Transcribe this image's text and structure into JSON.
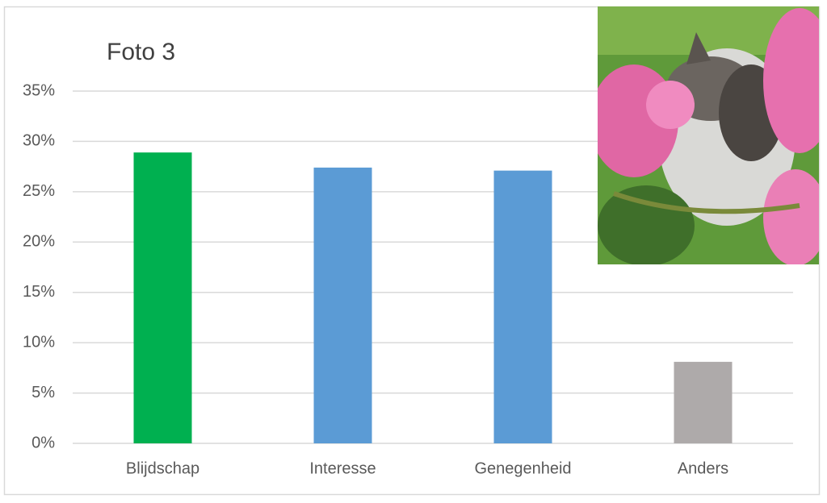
{
  "chart_data": {
    "type": "bar",
    "title": "Foto 3",
    "categories": [
      "Blijdschap",
      "Interesse",
      "Genegenheid",
      "Anders"
    ],
    "values": [
      28.9,
      27.4,
      27.1,
      8.1
    ],
    "colors": [
      "#00b050",
      "#5b9bd5",
      "#5b9bd5",
      "#aeaaaa"
    ],
    "ylim": [
      0,
      35
    ],
    "yticks": [
      {
        "value": 0,
        "label": "0%"
      },
      {
        "value": 5,
        "label": "5%"
      },
      {
        "value": 10,
        "label": "10%"
      },
      {
        "value": 15,
        "label": "15%"
      },
      {
        "value": 20,
        "label": "20%"
      },
      {
        "value": 25,
        "label": "25%"
      },
      {
        "value": 30,
        "label": "30%"
      },
      {
        "value": 35,
        "label": "35%"
      }
    ],
    "grid": true
  }
}
